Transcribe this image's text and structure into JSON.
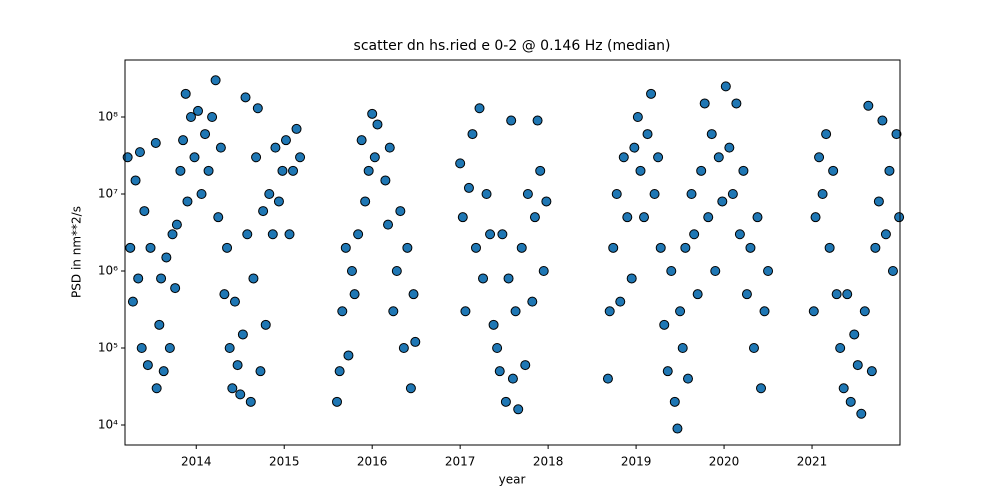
{
  "chart_data": {
    "type": "scatter",
    "title": "scatter dn hs.ried e 0-2 @ 0.146 Hz (median)",
    "x_label": "year",
    "y_label": "PSD in nm**2/s",
    "yscale": "log",
    "color": "#1f77b4",
    "edgecolor": "#000000",
    "xlim": [
      2013.19,
      2022.0
    ],
    "xticks": [
      2014,
      2015,
      2016,
      2017,
      2018,
      2019,
      2020,
      2021
    ],
    "ylim": [
      5500,
      550000000
    ],
    "yticks": [
      {
        "value": 10000,
        "label": "10⁴"
      },
      {
        "value": 100000,
        "label": "10⁵"
      },
      {
        "value": 1000000,
        "label": "10⁶"
      },
      {
        "value": 10000000,
        "label": "10⁷"
      },
      {
        "value": 100000000,
        "label": "10⁸"
      }
    ],
    "x": [
      2013.22,
      2013.25,
      2013.28,
      2013.31,
      2013.34,
      2013.38,
      2013.41,
      2013.45,
      2013.48,
      2013.36,
      2013.54,
      2013.55,
      2013.58,
      2013.6,
      2013.63,
      2013.66,
      2013.7,
      2013.73,
      2013.76,
      2013.78,
      2013.82,
      2013.85,
      2013.88,
      2013.9,
      2013.94,
      2013.98,
      2014.02,
      2014.06,
      2014.1,
      2014.14,
      2014.18,
      2014.22,
      2014.25,
      2014.28,
      2014.32,
      2014.35,
      2014.38,
      2014.41,
      2014.44,
      2014.47,
      2014.5,
      2014.53,
      2014.56,
      2014.58,
      2014.62,
      2014.65,
      2014.68,
      2014.7,
      2014.73,
      2014.76,
      2014.79,
      2014.83,
      2014.87,
      2014.9,
      2014.94,
      2014.98,
      2015.02,
      2015.06,
      2015.1,
      2015.14,
      2015.18,
      2015.6,
      2015.63,
      2015.66,
      2015.7,
      2015.73,
      2015.77,
      2015.8,
      2015.84,
      2015.88,
      2015.92,
      2015.96,
      2016.0,
      2016.03,
      2016.06,
      2016.15,
      2016.18,
      2016.2,
      2016.24,
      2016.28,
      2016.32,
      2016.36,
      2016.4,
      2016.44,
      2016.47,
      2016.49,
      2017.0,
      2017.03,
      2017.06,
      2017.1,
      2017.14,
      2017.18,
      2017.22,
      2017.26,
      2017.3,
      2017.34,
      2017.38,
      2017.42,
      2017.45,
      2017.48,
      2017.52,
      2017.55,
      2017.58,
      2017.6,
      2017.63,
      2017.66,
      2017.7,
      2017.74,
      2017.77,
      2017.82,
      2017.85,
      2017.88,
      2017.91,
      2017.95,
      2017.98,
      2018.68,
      2018.7,
      2018.74,
      2018.78,
      2018.82,
      2018.86,
      2018.9,
      2018.95,
      2018.98,
      2019.02,
      2019.05,
      2019.09,
      2019.13,
      2019.17,
      2019.21,
      2019.25,
      2019.28,
      2019.32,
      2019.36,
      2019.4,
      2019.44,
      2019.47,
      2019.5,
      2019.53,
      2019.56,
      2019.59,
      2019.63,
      2019.66,
      2019.7,
      2019.74,
      2019.78,
      2019.82,
      2019.86,
      2019.9,
      2019.94,
      2019.98,
      2020.02,
      2020.06,
      2020.1,
      2020.14,
      2020.18,
      2020.22,
      2020.26,
      2020.3,
      2020.34,
      2020.38,
      2020.42,
      2020.46,
      2020.5,
      2021.02,
      2021.04,
      2021.08,
      2021.12,
      2021.16,
      2021.2,
      2021.24,
      2021.28,
      2021.32,
      2021.36,
      2021.4,
      2021.44,
      2021.48,
      2021.52,
      2021.56,
      2021.6,
      2021.64,
      2021.68,
      2021.72,
      2021.76,
      2021.8,
      2021.84,
      2021.88,
      2021.92,
      2021.96,
      2021.99
    ],
    "values": [
      30000000.0,
      2000000.0,
      400000.0,
      15000000.0,
      800000.0,
      100000.0,
      6000000.0,
      60000.0,
      2000000.0,
      35000000.0,
      46000000.0,
      30000.0,
      200000.0,
      800000.0,
      50000.0,
      1500000.0,
      100000.0,
      3000000.0,
      600000.0,
      4000000.0,
      20000000.0,
      50000000.0,
      200000000.0,
      8000000.0,
      100000000.0,
      30000000.0,
      120000000.0,
      10000000.0,
      60000000.0,
      20000000.0,
      100000000.0,
      300000000.0,
      5000000.0,
      40000000.0,
      500000.0,
      2000000.0,
      100000.0,
      30000.0,
      400000.0,
      60000.0,
      25000.0,
      150000.0,
      180000000.0,
      3000000.0,
      20000.0,
      800000.0,
      30000000.0,
      130000000.0,
      50000.0,
      6000000.0,
      200000.0,
      10000000.0,
      3000000.0,
      40000000.0,
      8000000.0,
      20000000.0,
      50000000.0,
      3000000.0,
      20000000.0,
      70000000.0,
      30000000.0,
      20000.0,
      50000.0,
      300000.0,
      2000000.0,
      80000.0,
      1000000.0,
      500000.0,
      3000000.0,
      50000000.0,
      8000000.0,
      20000000.0,
      110000000.0,
      30000000.0,
      80000000.0,
      15000000.0,
      4000000.0,
      40000000.0,
      300000.0,
      1000000.0,
      6000000.0,
      100000.0,
      2000000.0,
      30000.0,
      500000.0,
      120000.0,
      25000000.0,
      5000000.0,
      300000.0,
      12000000.0,
      60000000.0,
      2000000.0,
      130000000.0,
      800000.0,
      10000000.0,
      3000000.0,
      200000.0,
      100000.0,
      50000.0,
      3000000.0,
      20000.0,
      800000.0,
      90000000.0,
      40000.0,
      300000.0,
      16000.0,
      2000000.0,
      60000.0,
      10000000.0,
      400000.0,
      5000000.0,
      90000000.0,
      20000000.0,
      1000000.0,
      8000000.0,
      40000.0,
      300000.0,
      2000000.0,
      10000000.0,
      400000.0,
      30000000.0,
      5000000.0,
      800000.0,
      40000000.0,
      100000000.0,
      20000000.0,
      5000000.0,
      60000000.0,
      200000000.0,
      10000000.0,
      30000000.0,
      2000000.0,
      200000.0,
      50000.0,
      1000000.0,
      20000.0,
      9000.0,
      300000.0,
      100000.0,
      2000000.0,
      40000.0,
      10000000.0,
      3000000.0,
      500000.0,
      20000000.0,
      150000000.0,
      5000000.0,
      60000000.0,
      1000000.0,
      30000000.0,
      8000000.0,
      250000000.0,
      40000000.0,
      10000000.0,
      150000000.0,
      3000000.0,
      20000000.0,
      500000.0,
      2000000.0,
      100000.0,
      5000000.0,
      30000.0,
      300000.0,
      1000000.0,
      300000.0,
      5000000.0,
      30000000.0,
      10000000.0,
      60000000.0,
      2000000.0,
      20000000.0,
      500000.0,
      100000.0,
      30000.0,
      500000.0,
      20000.0,
      150000.0,
      60000.0,
      14000.0,
      300000.0,
      140000000.0,
      50000.0,
      2000000.0,
      8000000.0,
      90000000.0,
      3000000.0,
      20000000.0,
      1000000.0,
      60000000.0,
      5000000.0
    ]
  }
}
